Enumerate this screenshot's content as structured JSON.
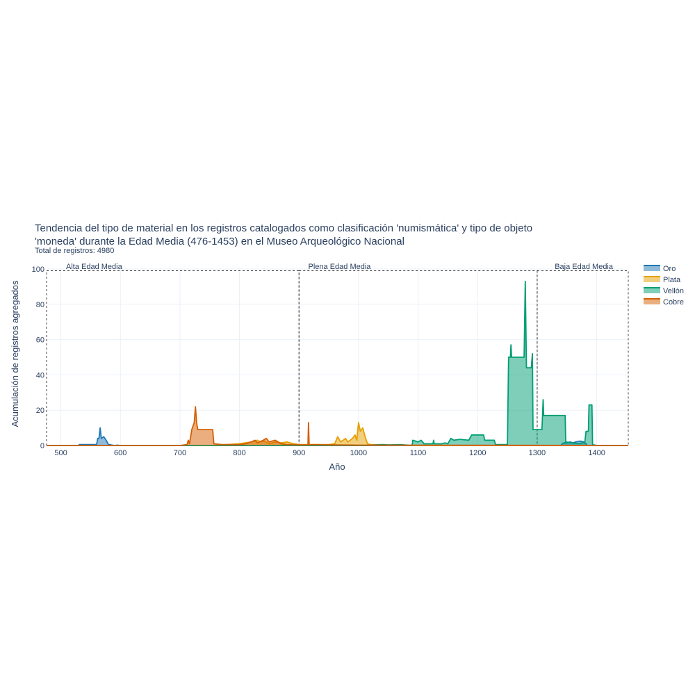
{
  "chart_data": {
    "type": "area",
    "title": "Tendencia del tipo de material en los registros catalogados como clasificación 'numismática' y tipo de objeto 'moneda' durante la Edad Media (476-1453) en el Museo Arqueológico Nacional",
    "title_lines": [
      "Tendencia del tipo de material en los registros catalogados como clasificación 'numismática' y tipo de objeto",
      "'moneda' durante la Edad Media (476-1453) en el Museo Arqueológico Nacional"
    ],
    "subtitle": "Total de registros: 4980",
    "xlabel": "Año",
    "ylabel": "Acumulación de registros agregados",
    "xlim": [
      476,
      1453
    ],
    "ylim": [
      0,
      100
    ],
    "x_ticks": [
      500,
      600,
      700,
      800,
      900,
      1000,
      1100,
      1200,
      1300,
      1400
    ],
    "y_ticks": [
      0,
      20,
      40,
      60,
      80,
      100
    ],
    "grid": true,
    "legend_position": "right",
    "periods": [
      {
        "label": "Alta Edad Media",
        "start": 476,
        "end": 900
      },
      {
        "label": "Plena Edad Media",
        "start": 900,
        "end": 1300
      },
      {
        "label": "Baja Edad Media",
        "start": 1300,
        "end": 1453
      }
    ],
    "series": [
      {
        "name": "Oro",
        "color": "#1f77b4",
        "fill": "rgba(31,119,180,0.5)",
        "points": [
          [
            476,
            0
          ],
          [
            530,
            0
          ],
          [
            531,
            0.5
          ],
          [
            560,
            0.5
          ],
          [
            562,
            4
          ],
          [
            564,
            4
          ],
          [
            566,
            10
          ],
          [
            568,
            4
          ],
          [
            572,
            5
          ],
          [
            576,
            3
          ],
          [
            580,
            0.5
          ],
          [
            584,
            0.3
          ],
          [
            590,
            0
          ],
          [
            595,
            0.2
          ],
          [
            600,
            0
          ],
          [
            1300,
            0
          ],
          [
            1340,
            0
          ],
          [
            1342,
            1
          ],
          [
            1345,
            1.5
          ],
          [
            1350,
            1.5
          ],
          [
            1355,
            2
          ],
          [
            1360,
            1.5
          ],
          [
            1365,
            2
          ],
          [
            1372,
            2.5
          ],
          [
            1378,
            2
          ],
          [
            1382,
            1
          ],
          [
            1384,
            0
          ],
          [
            1453,
            0
          ]
        ]
      },
      {
        "name": "Plata",
        "color": "#e69f00",
        "fill": "rgba(230,159,0,0.5)",
        "points": [
          [
            476,
            0
          ],
          [
            770,
            0
          ],
          [
            780,
            0.5
          ],
          [
            800,
            1
          ],
          [
            810,
            1.5
          ],
          [
            820,
            2
          ],
          [
            830,
            3
          ],
          [
            835,
            2
          ],
          [
            842,
            2.5
          ],
          [
            850,
            1
          ],
          [
            860,
            2
          ],
          [
            870,
            1.5
          ],
          [
            880,
            2
          ],
          [
            890,
            1
          ],
          [
            900,
            0.5
          ],
          [
            950,
            0.5
          ],
          [
            960,
            1
          ],
          [
            965,
            5
          ],
          [
            970,
            2
          ],
          [
            978,
            4
          ],
          [
            982,
            2
          ],
          [
            990,
            4
          ],
          [
            994,
            6
          ],
          [
            997,
            3
          ],
          [
            1000,
            13
          ],
          [
            1003,
            8
          ],
          [
            1007,
            10
          ],
          [
            1011,
            5
          ],
          [
            1015,
            1
          ],
          [
            1020,
            0.5
          ],
          [
            1050,
            0.3
          ],
          [
            1100,
            0
          ],
          [
            1453,
            0
          ]
        ]
      },
      {
        "name": "Vellón",
        "color": "#009e73",
        "fill": "rgba(0,158,115,0.5)",
        "points": [
          [
            476,
            0
          ],
          [
            1010,
            0
          ],
          [
            1040,
            0.5
          ],
          [
            1050,
            0.3
          ],
          [
            1070,
            0.5
          ],
          [
            1090,
            0
          ],
          [
            1091,
            3
          ],
          [
            1100,
            2
          ],
          [
            1105,
            3
          ],
          [
            1110,
            1
          ],
          [
            1125,
            1
          ],
          [
            1126,
            3
          ],
          [
            1127,
            1
          ],
          [
            1140,
            1
          ],
          [
            1145,
            1.5
          ],
          [
            1150,
            1
          ],
          [
            1155,
            4
          ],
          [
            1160,
            3
          ],
          [
            1170,
            3.5
          ],
          [
            1185,
            3
          ],
          [
            1190,
            6
          ],
          [
            1210,
            6
          ],
          [
            1212,
            3
          ],
          [
            1228,
            3
          ],
          [
            1230,
            0.5
          ],
          [
            1250,
            0.5
          ],
          [
            1252,
            50
          ],
          [
            1255,
            50
          ],
          [
            1256,
            57
          ],
          [
            1257,
            50
          ],
          [
            1278,
            50
          ],
          [
            1280,
            93
          ],
          [
            1282,
            44
          ],
          [
            1290,
            44
          ],
          [
            1292,
            52
          ],
          [
            1293,
            9
          ],
          [
            1308,
            9
          ],
          [
            1310,
            26
          ],
          [
            1311,
            17
          ],
          [
            1347,
            17
          ],
          [
            1348,
            2
          ],
          [
            1370,
            1
          ],
          [
            1380,
            2
          ],
          [
            1382,
            8
          ],
          [
            1386,
            8
          ],
          [
            1387,
            23
          ],
          [
            1392,
            23
          ],
          [
            1393,
            0.5
          ],
          [
            1400,
            0
          ],
          [
            1453,
            0
          ]
        ]
      },
      {
        "name": "Cobre",
        "color": "#d55e00",
        "fill": "rgba(213,94,0,0.5)",
        "points": [
          [
            476,
            0
          ],
          [
            700,
            0
          ],
          [
            712,
            0.5
          ],
          [
            714,
            3
          ],
          [
            716,
            1
          ],
          [
            718,
            5
          ],
          [
            720,
            9
          ],
          [
            724,
            13
          ],
          [
            726,
            22
          ],
          [
            728,
            13
          ],
          [
            730,
            9
          ],
          [
            755,
            9
          ],
          [
            757,
            1
          ],
          [
            770,
            0.5
          ],
          [
            790,
            0.5
          ],
          [
            800,
            0.5
          ],
          [
            810,
            1
          ],
          [
            820,
            2
          ],
          [
            826,
            3
          ],
          [
            830,
            1.5
          ],
          [
            840,
            3
          ],
          [
            845,
            4
          ],
          [
            850,
            2
          ],
          [
            860,
            3
          ],
          [
            870,
            1
          ],
          [
            880,
            0.5
          ],
          [
            895,
            0.5
          ],
          [
            900,
            0.3
          ],
          [
            915,
            0.3
          ],
          [
            916,
            13
          ],
          [
            917,
            0.5
          ],
          [
            960,
            0.3
          ],
          [
            1000,
            0.2
          ],
          [
            1453,
            0
          ]
        ]
      }
    ]
  }
}
